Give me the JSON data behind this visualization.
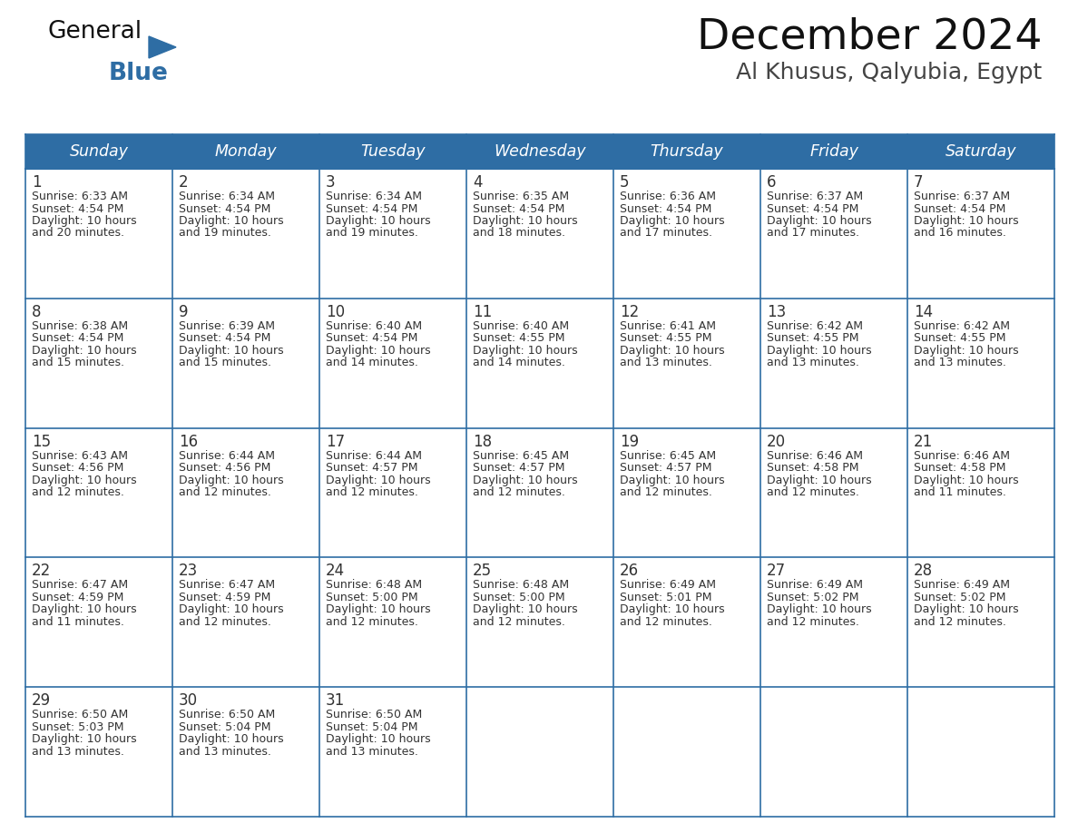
{
  "title": "December 2024",
  "subtitle": "Al Khusus, Qalyubia, Egypt",
  "header_bg": "#2E6DA4",
  "header_text": "#FFFFFF",
  "day_names": [
    "Sunday",
    "Monday",
    "Tuesday",
    "Wednesday",
    "Thursday",
    "Friday",
    "Saturday"
  ],
  "cell_bg": "#FFFFFF",
  "border_color": "#2E6DA4",
  "date_color": "#333333",
  "text_color": "#333333",
  "days": [
    {
      "date": 1,
      "col": 0,
      "row": 0,
      "sunrise": "6:33 AM",
      "sunset": "4:54 PM",
      "daylight_suffix": "20 minutes."
    },
    {
      "date": 2,
      "col": 1,
      "row": 0,
      "sunrise": "6:34 AM",
      "sunset": "4:54 PM",
      "daylight_suffix": "19 minutes."
    },
    {
      "date": 3,
      "col": 2,
      "row": 0,
      "sunrise": "6:34 AM",
      "sunset": "4:54 PM",
      "daylight_suffix": "19 minutes."
    },
    {
      "date": 4,
      "col": 3,
      "row": 0,
      "sunrise": "6:35 AM",
      "sunset": "4:54 PM",
      "daylight_suffix": "18 minutes."
    },
    {
      "date": 5,
      "col": 4,
      "row": 0,
      "sunrise": "6:36 AM",
      "sunset": "4:54 PM",
      "daylight_suffix": "17 minutes."
    },
    {
      "date": 6,
      "col": 5,
      "row": 0,
      "sunrise": "6:37 AM",
      "sunset": "4:54 PM",
      "daylight_suffix": "17 minutes."
    },
    {
      "date": 7,
      "col": 6,
      "row": 0,
      "sunrise": "6:37 AM",
      "sunset": "4:54 PM",
      "daylight_suffix": "16 minutes."
    },
    {
      "date": 8,
      "col": 0,
      "row": 1,
      "sunrise": "6:38 AM",
      "sunset": "4:54 PM",
      "daylight_suffix": "15 minutes."
    },
    {
      "date": 9,
      "col": 1,
      "row": 1,
      "sunrise": "6:39 AM",
      "sunset": "4:54 PM",
      "daylight_suffix": "15 minutes."
    },
    {
      "date": 10,
      "col": 2,
      "row": 1,
      "sunrise": "6:40 AM",
      "sunset": "4:54 PM",
      "daylight_suffix": "14 minutes."
    },
    {
      "date": 11,
      "col": 3,
      "row": 1,
      "sunrise": "6:40 AM",
      "sunset": "4:55 PM",
      "daylight_suffix": "14 minutes."
    },
    {
      "date": 12,
      "col": 4,
      "row": 1,
      "sunrise": "6:41 AM",
      "sunset": "4:55 PM",
      "daylight_suffix": "13 minutes."
    },
    {
      "date": 13,
      "col": 5,
      "row": 1,
      "sunrise": "6:42 AM",
      "sunset": "4:55 PM",
      "daylight_suffix": "13 minutes."
    },
    {
      "date": 14,
      "col": 6,
      "row": 1,
      "sunrise": "6:42 AM",
      "sunset": "4:55 PM",
      "daylight_suffix": "13 minutes."
    },
    {
      "date": 15,
      "col": 0,
      "row": 2,
      "sunrise": "6:43 AM",
      "sunset": "4:56 PM",
      "daylight_suffix": "12 minutes."
    },
    {
      "date": 16,
      "col": 1,
      "row": 2,
      "sunrise": "6:44 AM",
      "sunset": "4:56 PM",
      "daylight_suffix": "12 minutes."
    },
    {
      "date": 17,
      "col": 2,
      "row": 2,
      "sunrise": "6:44 AM",
      "sunset": "4:57 PM",
      "daylight_suffix": "12 minutes."
    },
    {
      "date": 18,
      "col": 3,
      "row": 2,
      "sunrise": "6:45 AM",
      "sunset": "4:57 PM",
      "daylight_suffix": "12 minutes."
    },
    {
      "date": 19,
      "col": 4,
      "row": 2,
      "sunrise": "6:45 AM",
      "sunset": "4:57 PM",
      "daylight_suffix": "12 minutes."
    },
    {
      "date": 20,
      "col": 5,
      "row": 2,
      "sunrise": "6:46 AM",
      "sunset": "4:58 PM",
      "daylight_suffix": "12 minutes."
    },
    {
      "date": 21,
      "col": 6,
      "row": 2,
      "sunrise": "6:46 AM",
      "sunset": "4:58 PM",
      "daylight_suffix": "11 minutes."
    },
    {
      "date": 22,
      "col": 0,
      "row": 3,
      "sunrise": "6:47 AM",
      "sunset": "4:59 PM",
      "daylight_suffix": "11 minutes."
    },
    {
      "date": 23,
      "col": 1,
      "row": 3,
      "sunrise": "6:47 AM",
      "sunset": "4:59 PM",
      "daylight_suffix": "12 minutes."
    },
    {
      "date": 24,
      "col": 2,
      "row": 3,
      "sunrise": "6:48 AM",
      "sunset": "5:00 PM",
      "daylight_suffix": "12 minutes."
    },
    {
      "date": 25,
      "col": 3,
      "row": 3,
      "sunrise": "6:48 AM",
      "sunset": "5:00 PM",
      "daylight_suffix": "12 minutes."
    },
    {
      "date": 26,
      "col": 4,
      "row": 3,
      "sunrise": "6:49 AM",
      "sunset": "5:01 PM",
      "daylight_suffix": "12 minutes."
    },
    {
      "date": 27,
      "col": 5,
      "row": 3,
      "sunrise": "6:49 AM",
      "sunset": "5:02 PM",
      "daylight_suffix": "12 minutes."
    },
    {
      "date": 28,
      "col": 6,
      "row": 3,
      "sunrise": "6:49 AM",
      "sunset": "5:02 PM",
      "daylight_suffix": "12 minutes."
    },
    {
      "date": 29,
      "col": 0,
      "row": 4,
      "sunrise": "6:50 AM",
      "sunset": "5:03 PM",
      "daylight_suffix": "13 minutes."
    },
    {
      "date": 30,
      "col": 1,
      "row": 4,
      "sunrise": "6:50 AM",
      "sunset": "5:04 PM",
      "daylight_suffix": "13 minutes."
    },
    {
      "date": 31,
      "col": 2,
      "row": 4,
      "sunrise": "6:50 AM",
      "sunset": "5:04 PM",
      "daylight_suffix": "13 minutes."
    }
  ]
}
